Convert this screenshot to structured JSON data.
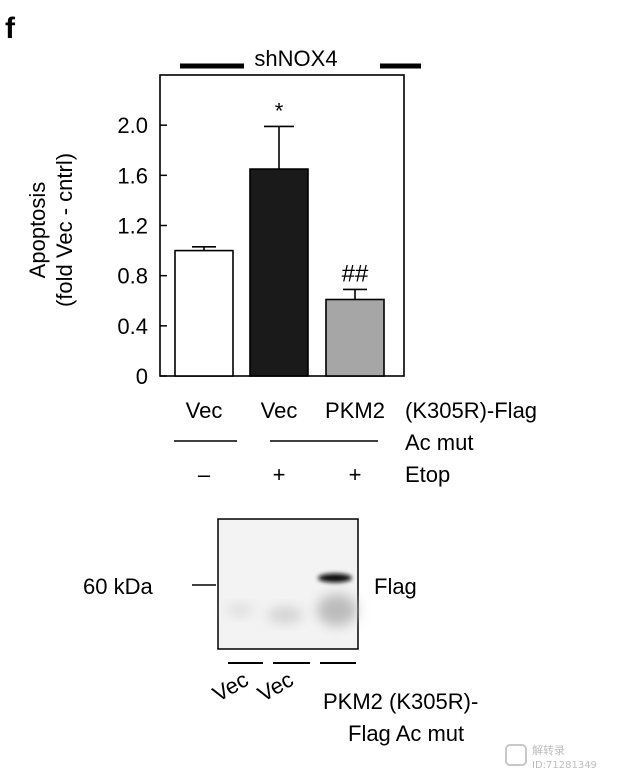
{
  "panel_label": "f",
  "chart_data": {
    "type": "bar",
    "group_label": "shNOX4",
    "ylabel_line1": "Apoptosis",
    "ylabel_line2": "(fold Vec - cntrl)",
    "ylim": [
      0,
      2.4
    ],
    "yticks": [
      "0",
      "0.4",
      "0.8",
      "1.2",
      "1.6",
      "2.0"
    ],
    "ytick_values": [
      0,
      0.4,
      0.8,
      1.2,
      1.6,
      2.0
    ],
    "categories": [
      "Vec",
      "Vec",
      "PKM2"
    ],
    "values": [
      1.0,
      1.65,
      0.61
    ],
    "errors": [
      0.03,
      0.34,
      0.08
    ],
    "bar_colors": [
      "#ffffff",
      "#1a1a1a",
      "#a6a6a6"
    ],
    "annotations": [
      "",
      "*",
      "##"
    ],
    "category_suffix": "(K305R)-Flag",
    "category_suffix2": "Ac mut",
    "treatment_label": "Etop",
    "treatment_signs": [
      "–",
      "+",
      "+"
    ]
  },
  "blot": {
    "mw_marker": "60 kDa",
    "band_label": "Flag",
    "lane_labels": [
      "Vec",
      "Vec"
    ],
    "lane3_label_line1": "PKM2 (K305R)-",
    "lane3_label_line2": "Flag Ac mut"
  },
  "watermark": {
    "line1": "解转录",
    "line2": "ID:71281349"
  }
}
